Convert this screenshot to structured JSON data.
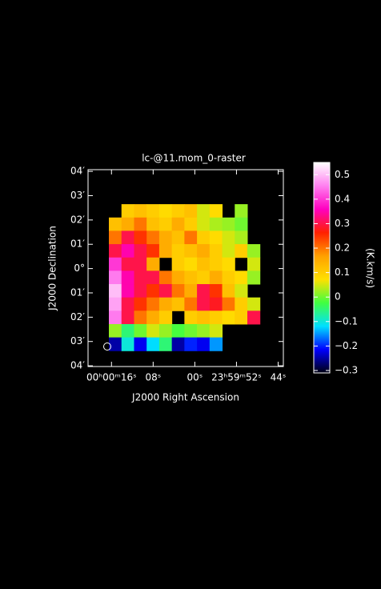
{
  "chart_data": {
    "type": "image",
    "title": "lc-@11.mom_0-raster",
    "xlabel": "J2000 Right Ascension",
    "ylabel": "J2000 Declination",
    "xlim": [
      20.5,
      -17
    ],
    "ylim": [
      -4.03,
      4.07
    ],
    "xticks": [
      {
        "value": 16,
        "label": "00ʰ00ᵐ16ˢ"
      },
      {
        "value": 8,
        "label": "08ˢ"
      },
      {
        "value": 0,
        "label": "00ˢ"
      },
      {
        "value": -8,
        "label": "23ʰ59ᵐ52ˢ"
      },
      {
        "value": -16,
        "label": "44ˢ"
      }
    ],
    "yticks": [
      {
        "value": 4,
        "label": "04′"
      },
      {
        "value": 3,
        "label": "03′"
      },
      {
        "value": 2,
        "label": "02′"
      },
      {
        "value": 1,
        "label": "01′"
      },
      {
        "value": 0,
        "label": "0°"
      },
      {
        "value": -1,
        "label": "01′"
      },
      {
        "value": -2,
        "label": "02′"
      },
      {
        "value": -3,
        "label": "03′"
      },
      {
        "value": -4,
        "label": "04′"
      }
    ],
    "extent": [
      16.5,
      -12.5,
      2.65,
      -3.38
    ],
    "z": [
      [
        null,
        0.1,
        0.12,
        0.1,
        0.08,
        0.1,
        0.12,
        0.05,
        0.08,
        null,
        0.02,
        null
      ],
      [
        0.12,
        0.15,
        0.2,
        0.12,
        0.1,
        0.15,
        0.1,
        0.05,
        0.03,
        0.02,
        0.0,
        null
      ],
      [
        0.2,
        0.3,
        0.25,
        0.2,
        0.15,
        0.12,
        0.2,
        0.1,
        0.08,
        0.05,
        0.03,
        null
      ],
      [
        0.3,
        0.35,
        0.3,
        0.25,
        0.15,
        0.1,
        0.12,
        0.15,
        0.1,
        0.05,
        0.1,
        0.02
      ],
      [
        0.4,
        0.3,
        0.3,
        0.15,
        null,
        0.1,
        0.08,
        0.12,
        0.1,
        0.08,
        null,
        0.05
      ],
      [
        0.45,
        0.35,
        0.3,
        0.3,
        0.2,
        0.15,
        0.12,
        0.1,
        0.15,
        0.1,
        0.08,
        0.02
      ],
      [
        0.5,
        0.35,
        0.3,
        0.25,
        0.3,
        0.2,
        0.15,
        0.3,
        0.25,
        0.12,
        0.05,
        null
      ],
      [
        0.48,
        0.3,
        0.25,
        0.2,
        0.15,
        0.12,
        0.2,
        0.3,
        0.28,
        0.2,
        0.1,
        0.05
      ],
      [
        0.45,
        0.3,
        0.2,
        0.15,
        0.1,
        null,
        0.1,
        0.12,
        0.1,
        0.08,
        0.1,
        0.3
      ],
      [
        0.02,
        -0.05,
        0.0,
        0.05,
        0.02,
        -0.02,
        0.0,
        0.02,
        0.05,
        null,
        null,
        null
      ],
      [
        -0.25,
        -0.1,
        -0.22,
        -0.12,
        -0.05,
        -0.25,
        -0.2,
        -0.22,
        -0.15,
        null,
        null,
        null
      ]
    ],
    "colorbar": {
      "label": "(K.km/s)",
      "lim": [
        -0.31,
        0.55
      ],
      "ticks": [
        0.5,
        0.4,
        0.3,
        0.2,
        0.1,
        0,
        {
          "value": -0.1,
          "label": "−0.1"
        },
        {
          "value": -0.2,
          "label": "−0.2"
        },
        {
          "value": -0.3,
          "label": "−0.3"
        }
      ],
      "colors": [
        "#000010",
        "#0000ff",
        "#00e0ff",
        "#40ff40",
        "#ffe000",
        "#ffa000",
        "#ff2000",
        "#ff00c0",
        "#ff80f0",
        "#ffffff"
      ]
    }
  }
}
